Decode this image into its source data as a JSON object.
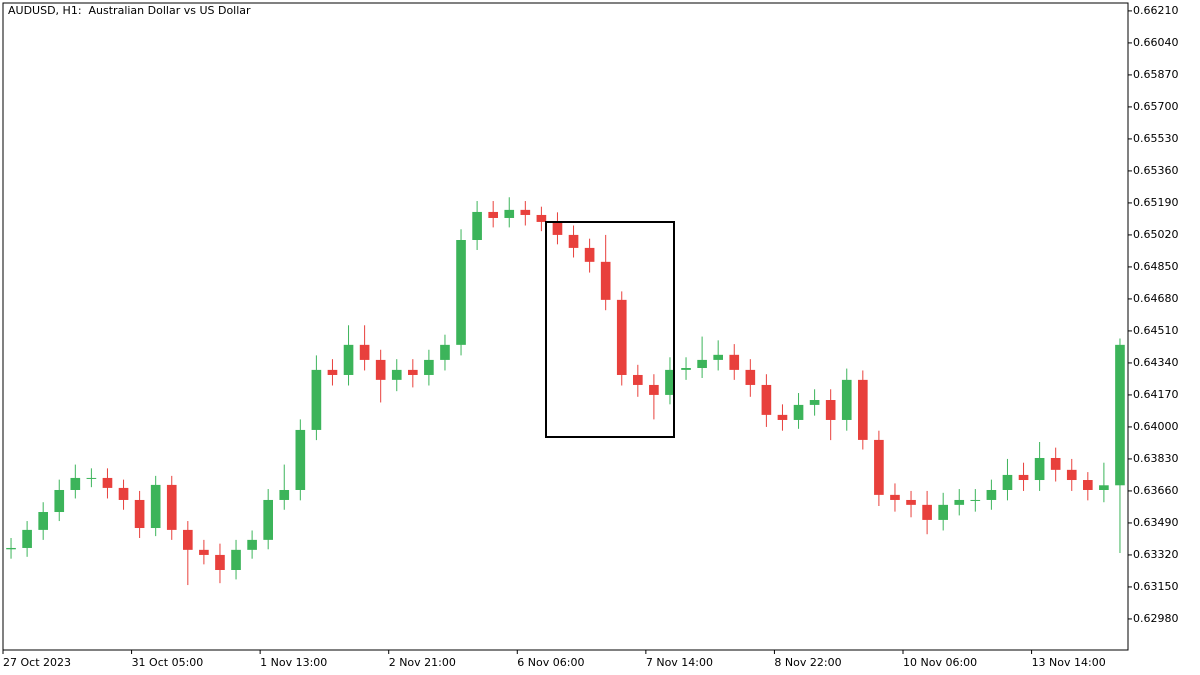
{
  "chart_data": {
    "type": "candlestick",
    "title": "AUDUSD, H1:  Australian Dollar vs US Dollar",
    "categories": [
      "27 Oct 2023",
      null,
      null,
      null,
      null,
      null,
      null,
      null,
      "31 Oct 05:00",
      null,
      null,
      null,
      null,
      null,
      null,
      null,
      "1 Nov 13:00",
      null,
      null,
      null,
      null,
      null,
      null,
      null,
      "2 Nov 21:00",
      null,
      null,
      null,
      null,
      null,
      null,
      null,
      "6 Nov 06:00",
      null,
      null,
      null,
      null,
      null,
      null,
      null,
      "7 Nov 14:00",
      null,
      null,
      null,
      null,
      null,
      null,
      null,
      "8 Nov 22:00",
      null,
      null,
      null,
      null,
      null,
      null,
      null,
      "10 Nov 06:00",
      null,
      null,
      null,
      null,
      null,
      null,
      null,
      "13 Nov 14:00",
      null,
      null,
      null,
      null,
      null
    ],
    "open": [
      0.6335,
      0.63357,
      0.63453,
      0.63548,
      0.63665,
      0.63729,
      0.63729,
      0.63676,
      0.63612,
      0.63463,
      0.63692,
      0.63453,
      0.63347,
      0.6332,
      0.6324,
      0.63347,
      0.634,
      0.63612,
      0.63665,
      0.63984,
      0.64303,
      0.64276,
      0.64436,
      0.64356,
      0.6425,
      0.64303,
      0.64276,
      0.64356,
      0.64436,
      0.64993,
      0.65142,
      0.6511,
      0.65153,
      0.65126,
      0.65089,
      0.6502,
      0.64951,
      0.64877,
      0.64675,
      0.64276,
      0.64223,
      0.6417,
      0.64303,
      0.64313,
      0.64356,
      0.64383,
      0.64303,
      0.64223,
      0.64064,
      0.64037,
      0.64117,
      0.64143,
      0.64037,
      0.6425,
      0.63931,
      0.63639,
      0.63612,
      0.63586,
      0.63506,
      0.63586,
      0.63612,
      0.63612,
      0.63665,
      0.63745,
      0.63718,
      0.63835,
      0.63772,
      0.63718,
      0.63665,
      0.6369
    ],
    "high": [
      0.6341,
      0.635,
      0.636,
      0.6372,
      0.638,
      0.6378,
      0.6378,
      0.6372,
      0.6366,
      0.6374,
      0.6374,
      0.635,
      0.634,
      0.6338,
      0.634,
      0.6345,
      0.6367,
      0.638,
      0.6404,
      0.6438,
      0.6436,
      0.6454,
      0.6454,
      0.6441,
      0.6436,
      0.6436,
      0.6441,
      0.6449,
      0.6505,
      0.652,
      0.652,
      0.6522,
      0.652,
      0.6517,
      0.6514,
      0.6507,
      0.65,
      0.6502,
      0.6472,
      0.6433,
      0.6428,
      0.6437,
      0.6437,
      0.6448,
      0.6446,
      0.6444,
      0.6436,
      0.6428,
      0.6412,
      0.6418,
      0.642,
      0.642,
      0.6431,
      0.643,
      0.6398,
      0.637,
      0.6366,
      0.6366,
      0.6365,
      0.6367,
      0.6367,
      0.6372,
      0.6383,
      0.6381,
      0.6392,
      0.6389,
      0.6383,
      0.6376,
      0.6381,
      0.6447
    ],
    "low": [
      0.633,
      0.6331,
      0.634,
      0.635,
      0.6362,
      0.6368,
      0.6362,
      0.6356,
      0.6341,
      0.6342,
      0.634,
      0.6316,
      0.6327,
      0.6317,
      0.6319,
      0.633,
      0.6335,
      0.6356,
      0.6361,
      0.6393,
      0.6422,
      0.6422,
      0.643,
      0.6413,
      0.6419,
      0.6421,
      0.6422,
      0.643,
      0.6438,
      0.6494,
      0.6506,
      0.6506,
      0.6507,
      0.6504,
      0.6497,
      0.649,
      0.6482,
      0.6462,
      0.6422,
      0.6416,
      0.6404,
      0.6412,
      0.6425,
      0.6426,
      0.643,
      0.6425,
      0.6416,
      0.64,
      0.6398,
      0.6399,
      0.6406,
      0.6393,
      0.6398,
      0.6388,
      0.6358,
      0.6355,
      0.6352,
      0.6343,
      0.6345,
      0.6353,
      0.6355,
      0.6356,
      0.6361,
      0.6366,
      0.6366,
      0.6371,
      0.6366,
      0.6361,
      0.636,
      0.6333
    ],
    "close": [
      0.63357,
      0.63453,
      0.63548,
      0.63665,
      0.63729,
      0.63729,
      0.63676,
      0.63612,
      0.63463,
      0.63692,
      0.63453,
      0.63347,
      0.6332,
      0.6324,
      0.63347,
      0.634,
      0.63612,
      0.63665,
      0.63984,
      0.64303,
      0.64276,
      0.64436,
      0.64356,
      0.6425,
      0.64303,
      0.64276,
      0.64356,
      0.64436,
      0.64993,
      0.65142,
      0.6511,
      0.65153,
      0.65126,
      0.65089,
      0.6502,
      0.64951,
      0.64877,
      0.64675,
      0.64276,
      0.64223,
      0.6417,
      0.64303,
      0.64313,
      0.64356,
      0.64383,
      0.64303,
      0.64223,
      0.64064,
      0.64037,
      0.64117,
      0.64143,
      0.64037,
      0.6425,
      0.63931,
      0.63639,
      0.63612,
      0.63586,
      0.63506,
      0.63586,
      0.63612,
      0.63612,
      0.63665,
      0.63745,
      0.63718,
      0.63835,
      0.63772,
      0.63718,
      0.63665,
      0.6369,
      0.64436
    ],
    "up_color": "#3cb45a",
    "down_color": "#e8403c",
    "ylim": [
      0.62815,
      0.66252
    ],
    "yticks": [
      {
        "value": 0.6621,
        "label": "0.66210"
      },
      {
        "value": 0.6604,
        "label": "0.66040"
      },
      {
        "value": 0.6587,
        "label": "0.65870"
      },
      {
        "value": 0.657,
        "label": "0.65700"
      },
      {
        "value": 0.6553,
        "label": "0.65530"
      },
      {
        "value": 0.6536,
        "label": "0.65360"
      },
      {
        "value": 0.6519,
        "label": "0.65190"
      },
      {
        "value": 0.6502,
        "label": "0.65020"
      },
      {
        "value": 0.6485,
        "label": "0.64850"
      },
      {
        "value": 0.6468,
        "label": "0.64680"
      },
      {
        "value": 0.6451,
        "label": "0.64510"
      },
      {
        "value": 0.6434,
        "label": "0.64340"
      },
      {
        "value": 0.6417,
        "label": "0.64170"
      },
      {
        "value": 0.64,
        "label": "0.64000"
      },
      {
        "value": 0.6383,
        "label": "0.63830"
      },
      {
        "value": 0.6366,
        "label": "0.63660"
      },
      {
        "value": 0.6349,
        "label": "0.63490"
      },
      {
        "value": 0.6332,
        "label": "0.63320"
      },
      {
        "value": 0.6315,
        "label": "0.63150"
      },
      {
        "value": 0.6298,
        "label": "0.62980"
      }
    ],
    "grid": false
  }
}
